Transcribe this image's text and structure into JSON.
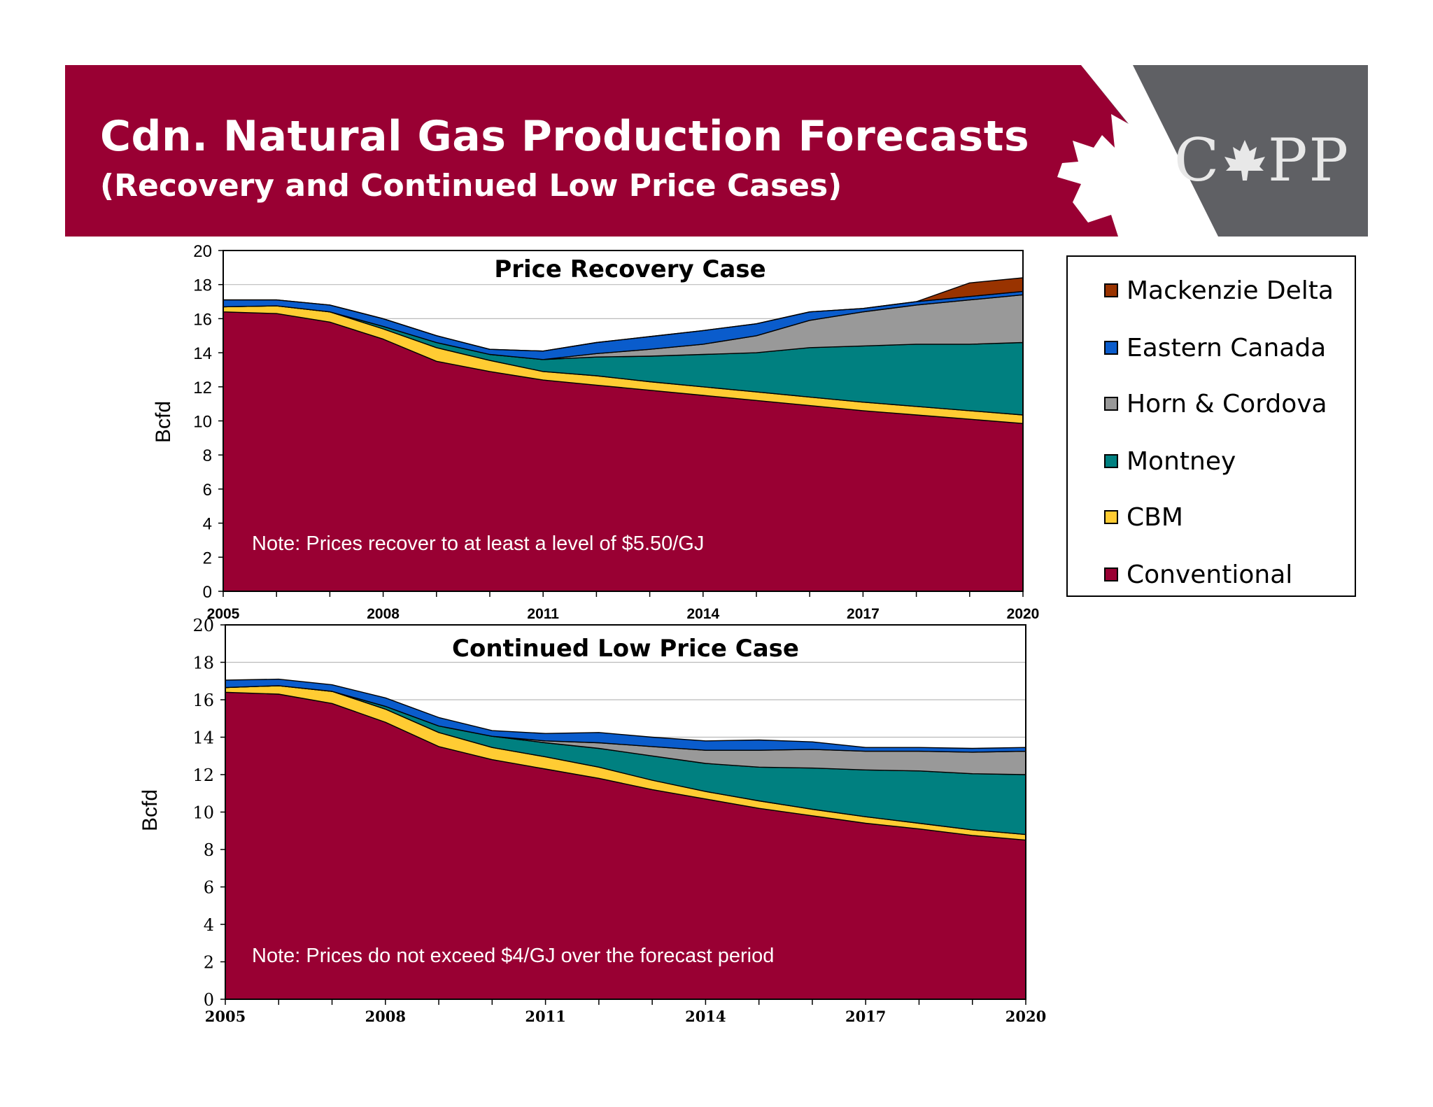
{
  "header": {
    "title": "Cdn. Natural Gas Production Forecasts",
    "subtitle": "(Recovery and Continued Low Price Cases)",
    "logo_text": "CAPP",
    "logo_left": "C",
    "logo_right": "PP"
  },
  "colors": {
    "banner": "#990033",
    "logo_bg": "#5f6064",
    "Mackenzie Delta": "#993300",
    "Eastern Canada": "#0a5ccc",
    "Horn & Cordova": "#999999",
    "Montney": "#008080",
    "CBM": "#ffcc33",
    "Conventional": "#990033"
  },
  "legend": [
    {
      "label": "Mackenzie Delta",
      "color": "#993300"
    },
    {
      "label": "Eastern Canada",
      "color": "#0a5ccc"
    },
    {
      "label": "Horn & Cordova",
      "color": "#999999"
    },
    {
      "label": "Montney",
      "color": "#008080"
    },
    {
      "label": "CBM",
      "color": "#ffcc33"
    },
    {
      "label": "Conventional",
      "color": "#990033"
    }
  ],
  "chart_data": [
    {
      "type": "area",
      "stacked": true,
      "title": "Price Recovery Case",
      "ylabel": "Bcfd",
      "xlabel": "",
      "ylim": [
        0,
        20
      ],
      "yticks": [
        "0",
        "2",
        "4",
        "6",
        "8",
        "10",
        "12",
        "14",
        "16",
        "18",
        "20"
      ],
      "xticks": [
        "2005",
        "2008",
        "2011",
        "2014",
        "2017",
        "2020"
      ],
      "grid": true,
      "note": "Note: Prices recover to at least a level of $5.50/GJ",
      "x": [
        2005,
        2006,
        2007,
        2008,
        2009,
        2010,
        2011,
        2012,
        2013,
        2014,
        2015,
        2016,
        2017,
        2018,
        2019,
        2020
      ],
      "series": [
        {
          "name": "Conventional",
          "values": [
            16.4,
            16.3,
            15.8,
            14.8,
            13.5,
            12.9,
            12.4,
            12.1,
            11.8,
            11.5,
            11.2,
            10.9,
            10.6,
            10.35,
            10.1,
            9.85
          ]
        },
        {
          "name": "CBM",
          "values": [
            0.3,
            0.45,
            0.6,
            0.6,
            0.8,
            0.65,
            0.5,
            0.55,
            0.5,
            0.5,
            0.5,
            0.5,
            0.5,
            0.5,
            0.5,
            0.5
          ]
        },
        {
          "name": "Montney",
          "values": [
            0,
            0,
            0,
            0.15,
            0.3,
            0.35,
            0.7,
            1.1,
            1.5,
            1.9,
            2.3,
            2.9,
            3.3,
            3.65,
            3.9,
            4.25
          ]
        },
        {
          "name": "Horn & Cordova",
          "values": [
            0,
            0,
            0,
            0,
            0,
            0,
            0,
            0.2,
            0.4,
            0.6,
            1.0,
            1.6,
            2.0,
            2.3,
            2.6,
            2.8
          ]
        },
        {
          "name": "Eastern Canada",
          "values": [
            0.4,
            0.35,
            0.4,
            0.45,
            0.4,
            0.3,
            0.5,
            0.65,
            0.75,
            0.8,
            0.7,
            0.5,
            0.2,
            0.2,
            0.2,
            0.2
          ]
        },
        {
          "name": "Mackenzie Delta",
          "values": [
            0,
            0,
            0,
            0,
            0,
            0,
            0,
            0,
            0,
            0,
            0,
            0,
            0,
            0,
            0.8,
            0.8
          ]
        }
      ]
    },
    {
      "type": "area",
      "stacked": true,
      "title": "Continued Low Price Case",
      "ylabel": "Bcfd",
      "xlabel": "",
      "ylim": [
        0,
        20
      ],
      "yticks": [
        "0",
        "2",
        "4",
        "6",
        "8",
        "10",
        "12",
        "14",
        "16",
        "18",
        "20"
      ],
      "xticks": [
        "2005",
        "2008",
        "2011",
        "2014",
        "2017",
        "2020"
      ],
      "grid": true,
      "note": "Note: Prices do not exceed $4/GJ over the forecast period",
      "x": [
        2005,
        2006,
        2007,
        2008,
        2009,
        2010,
        2011,
        2012,
        2013,
        2014,
        2015,
        2016,
        2017,
        2018,
        2019,
        2020
      ],
      "series": [
        {
          "name": "Conventional",
          "values": [
            16.4,
            16.3,
            15.8,
            14.8,
            13.5,
            12.8,
            12.3,
            11.8,
            11.2,
            10.7,
            10.2,
            9.8,
            9.4,
            9.1,
            8.75,
            8.5
          ]
        },
        {
          "name": "CBM",
          "values": [
            0.25,
            0.45,
            0.65,
            0.7,
            0.75,
            0.65,
            0.65,
            0.6,
            0.5,
            0.4,
            0.4,
            0.35,
            0.35,
            0.3,
            0.3,
            0.3
          ]
        },
        {
          "name": "Montney",
          "values": [
            0,
            0,
            0,
            0.15,
            0.35,
            0.6,
            0.75,
            1.0,
            1.3,
            1.5,
            1.8,
            2.2,
            2.5,
            2.8,
            3.0,
            3.2
          ]
        },
        {
          "name": "Horn & Cordova",
          "values": [
            0,
            0,
            0,
            0,
            0,
            0,
            0.1,
            0.3,
            0.5,
            0.7,
            0.9,
            1.0,
            1.0,
            1.05,
            1.15,
            1.25
          ]
        },
        {
          "name": "Eastern Canada",
          "values": [
            0.4,
            0.35,
            0.35,
            0.45,
            0.45,
            0.3,
            0.4,
            0.55,
            0.5,
            0.5,
            0.55,
            0.4,
            0.2,
            0.2,
            0.2,
            0.2
          ]
        },
        {
          "name": "Mackenzie Delta",
          "values": [
            0,
            0,
            0,
            0,
            0,
            0,
            0,
            0,
            0,
            0,
            0,
            0,
            0,
            0,
            0,
            0
          ]
        }
      ]
    }
  ]
}
